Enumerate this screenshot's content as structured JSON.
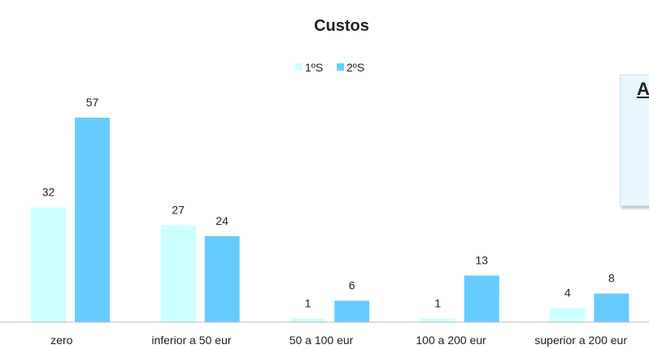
{
  "chart_data": {
    "type": "bar",
    "title": "Custos",
    "categories": [
      "zero",
      "inferior a 50 eur",
      "50 a 100 eur",
      "100 a 200 eur",
      "superior a 200 eur"
    ],
    "series": [
      {
        "name": "1ºS",
        "values": [
          32,
          27,
          1,
          1,
          4
        ],
        "color": "#ccffff"
      },
      {
        "name": "2ºS",
        "values": [
          57,
          24,
          6,
          13,
          8
        ],
        "color": "#66ccff"
      }
    ],
    "xlabel": "",
    "ylabel": "",
    "ylim": [
      0,
      65
    ],
    "grid": false,
    "legend_position": "top-center"
  },
  "annotation": {
    "text": "A"
  }
}
